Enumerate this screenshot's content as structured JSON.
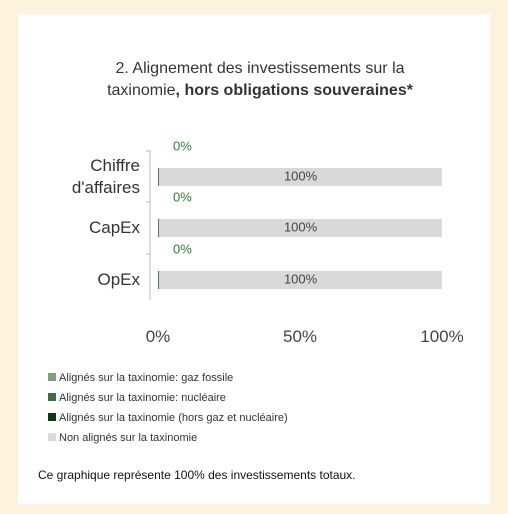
{
  "chart_data": {
    "type": "stacked_barh",
    "title": "2. Alignement des investissements sur la taxinomie",
    "title_bold": ", hors obligations souveraines*",
    "categories": [
      "Chiffre d'affaires",
      "CapEx",
      "OpEx"
    ],
    "series": [
      {
        "name": "Alignés sur la taxinomie: gaz fossile",
        "color": "#7fa07f",
        "values": [
          0.1,
          0.1,
          0.1
        ]
      },
      {
        "name": "Alignés sur la taxinomie: nucléaire",
        "color": "#3f6f3f",
        "values": [
          0.1,
          0.1,
          0.1
        ]
      },
      {
        "name": "Alignés sur la taxinomie (hors gaz et nucléaire)",
        "color": "#0b3a12",
        "values": [
          0.2,
          0.2,
          0.2
        ],
        "value_labels": [
          "0%",
          "0%",
          "0%"
        ]
      },
      {
        "name": "Non alignés sur la taxinomie",
        "color": "#d9d9d9",
        "values": [
          99.6,
          99.6,
          99.6
        ],
        "value_labels": [
          "100%",
          "100%",
          "100%"
        ]
      }
    ],
    "xlim": [
      0,
      100
    ],
    "xticks": [
      {
        "value": 0,
        "label": "0%"
      },
      {
        "value": 50,
        "label": "50%"
      },
      {
        "value": 100,
        "label": "100%"
      }
    ],
    "footnote": "Ce graphique représente 100% des investissements totaux."
  }
}
